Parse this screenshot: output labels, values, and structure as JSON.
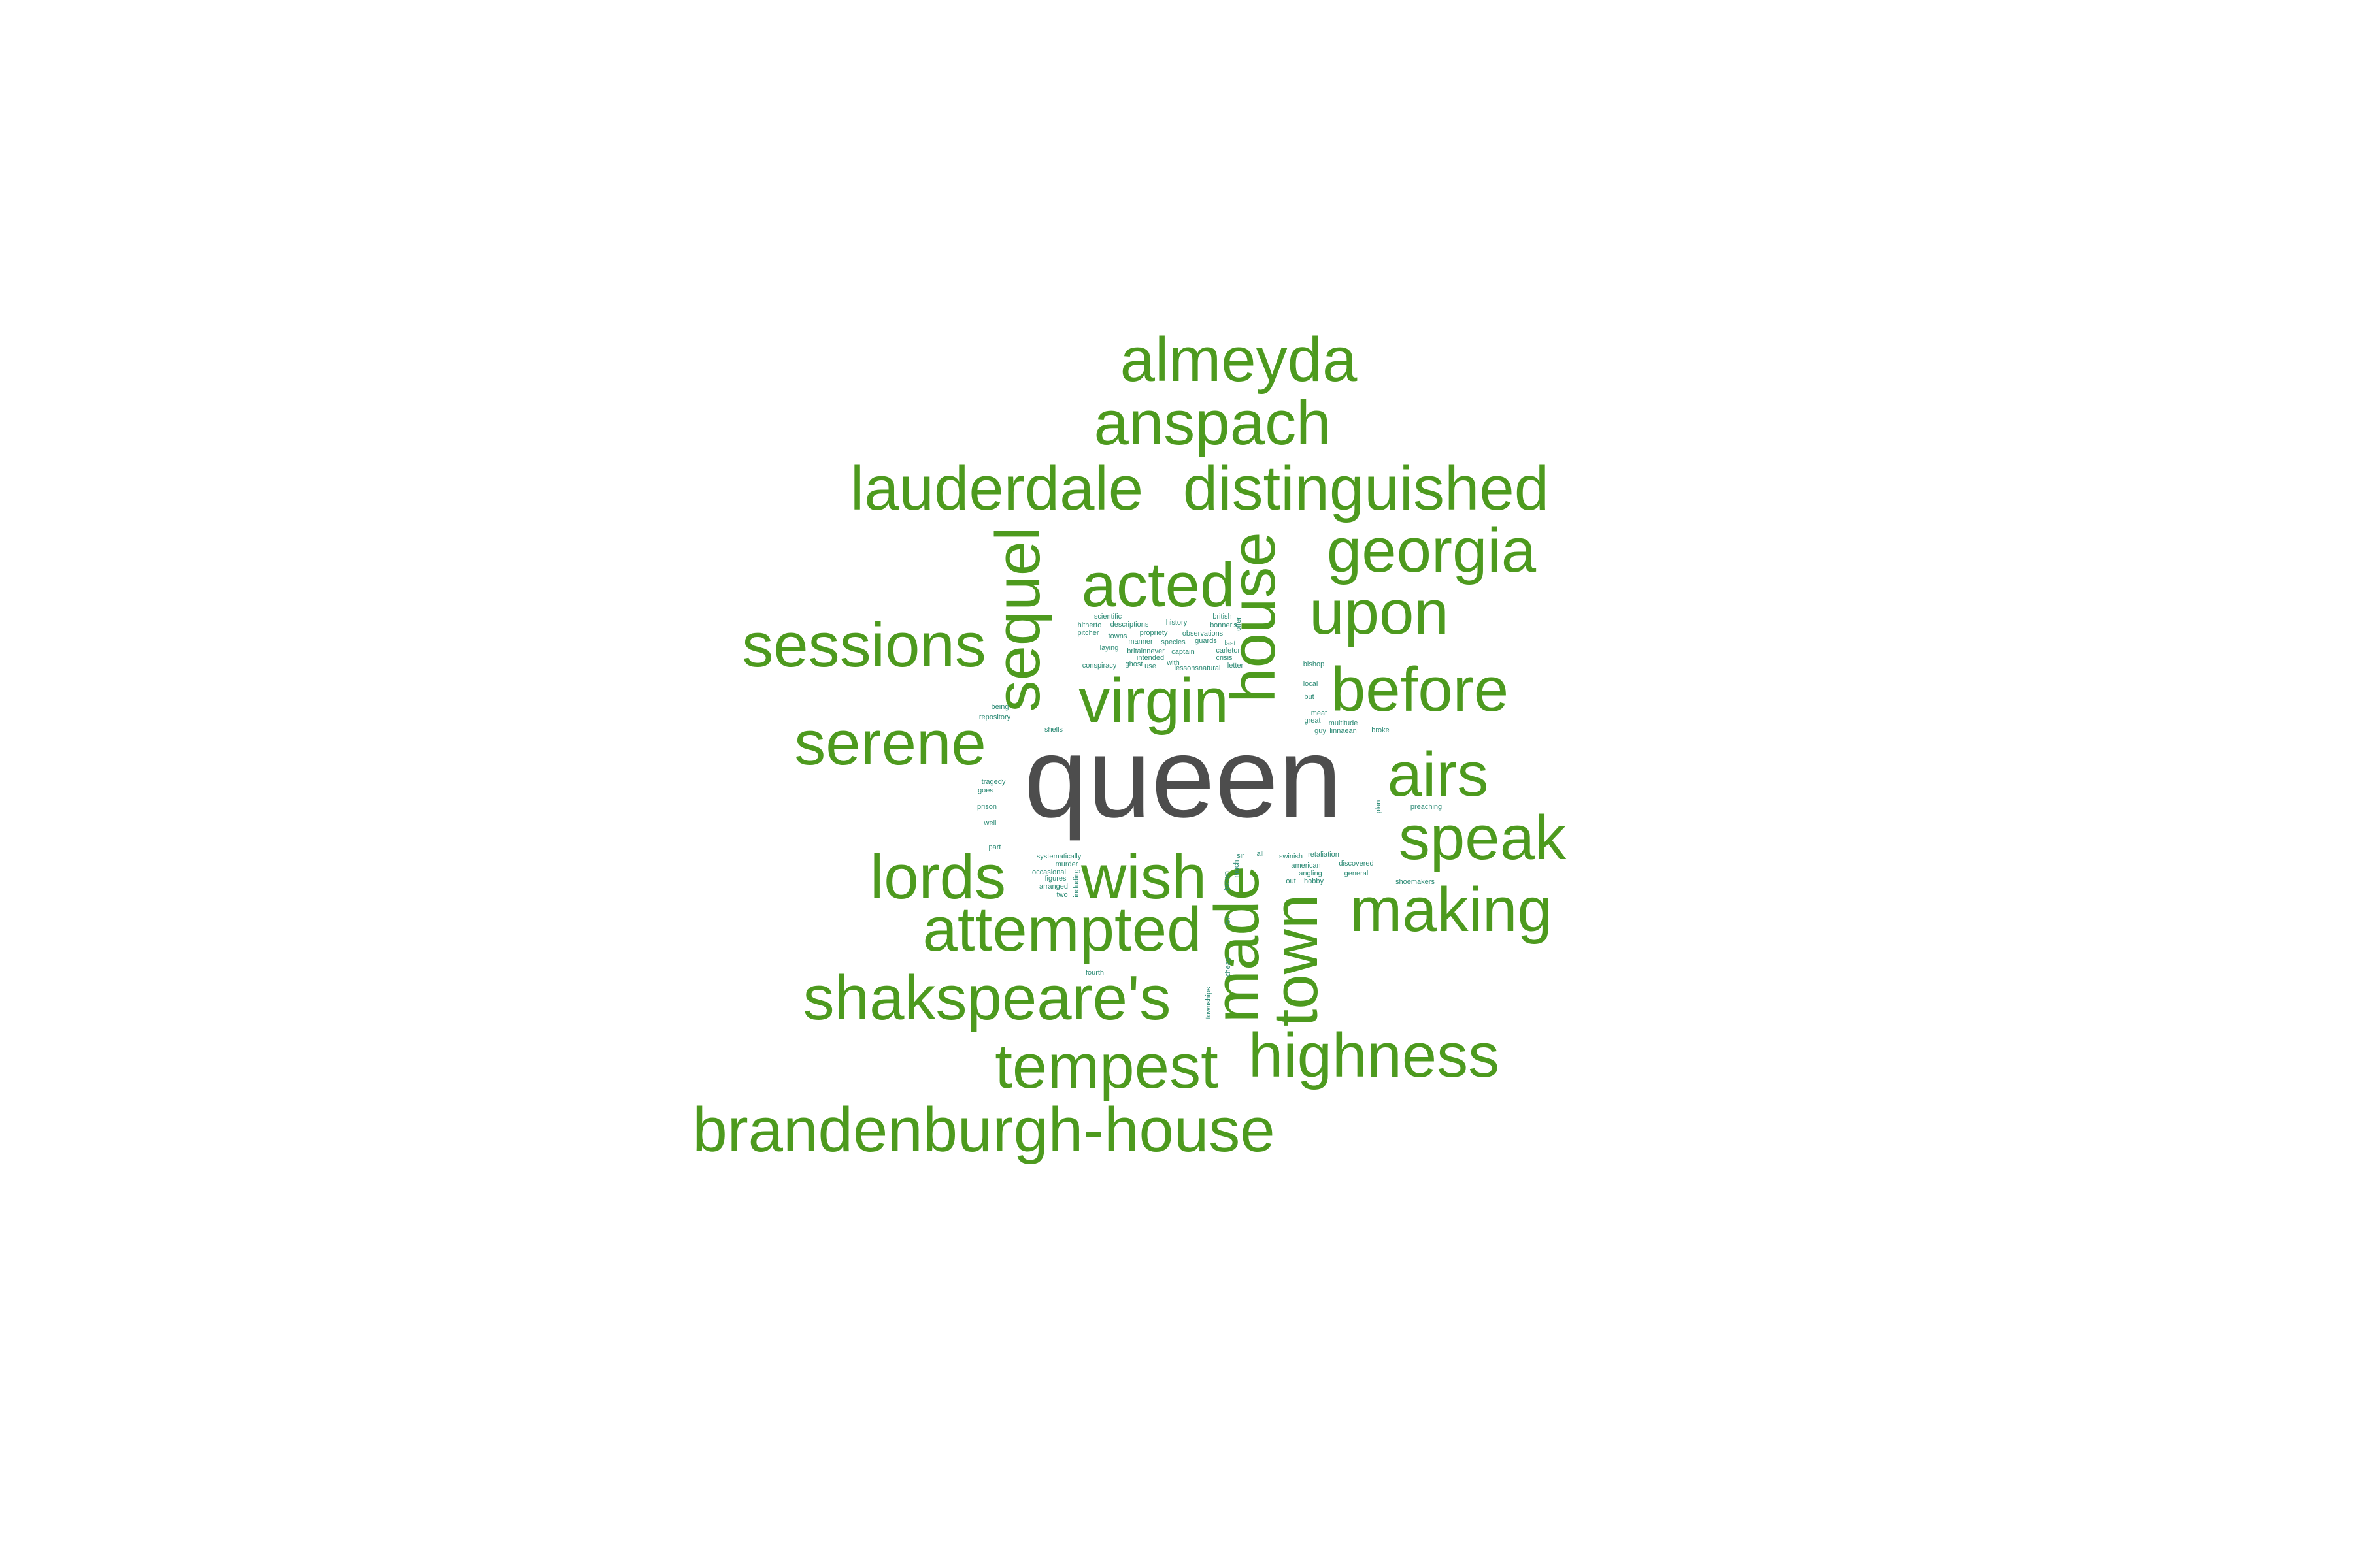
{
  "colors": {
    "large": "#4D9A1E",
    "top": "#4D4D4D",
    "small": "#2E8B76"
  },
  "words": [
    "queen",
    "almeyda",
    "anspach",
    "lauderdale",
    "distinguished",
    "georgia",
    "acted",
    "upon",
    "sessions",
    "virgin",
    "before",
    "serene",
    "airs",
    "speak",
    "lords",
    "wish",
    "making",
    "attempted",
    "shakspeare's",
    "highness",
    "tempest",
    "brandenburgh-house",
    "sequel",
    "house",
    "made",
    "town",
    "scientific",
    "british",
    "bonner's",
    "history",
    "hitherto",
    "pitcher",
    "descriptions",
    "propriety",
    "observations",
    "offer",
    "towns",
    "species",
    "guards",
    "manner",
    "last",
    "laying",
    "britainnever",
    "captain",
    "carleton",
    "intended",
    "crisis",
    "ghost",
    "with",
    "conspiracy",
    "use",
    "letter",
    "lessonsnatural",
    "bishop",
    "local",
    "being",
    "but",
    "repository",
    "meat",
    "great",
    "multitude",
    "shells",
    "guy",
    "linnaean",
    "broke",
    "tragedy",
    "goes",
    "plan",
    "prison",
    "preaching",
    "well",
    "part",
    "retaliation",
    "systematically",
    "swinish",
    "murder",
    "american",
    "discovered",
    "occasional",
    "figures",
    "angling",
    "general",
    "sir",
    "all",
    "hobby",
    "including",
    "arranged",
    "shoemakers",
    "two",
    "for",
    "fourth",
    "cheap",
    "townships",
    "brown",
    "much",
    "out"
  ]
}
